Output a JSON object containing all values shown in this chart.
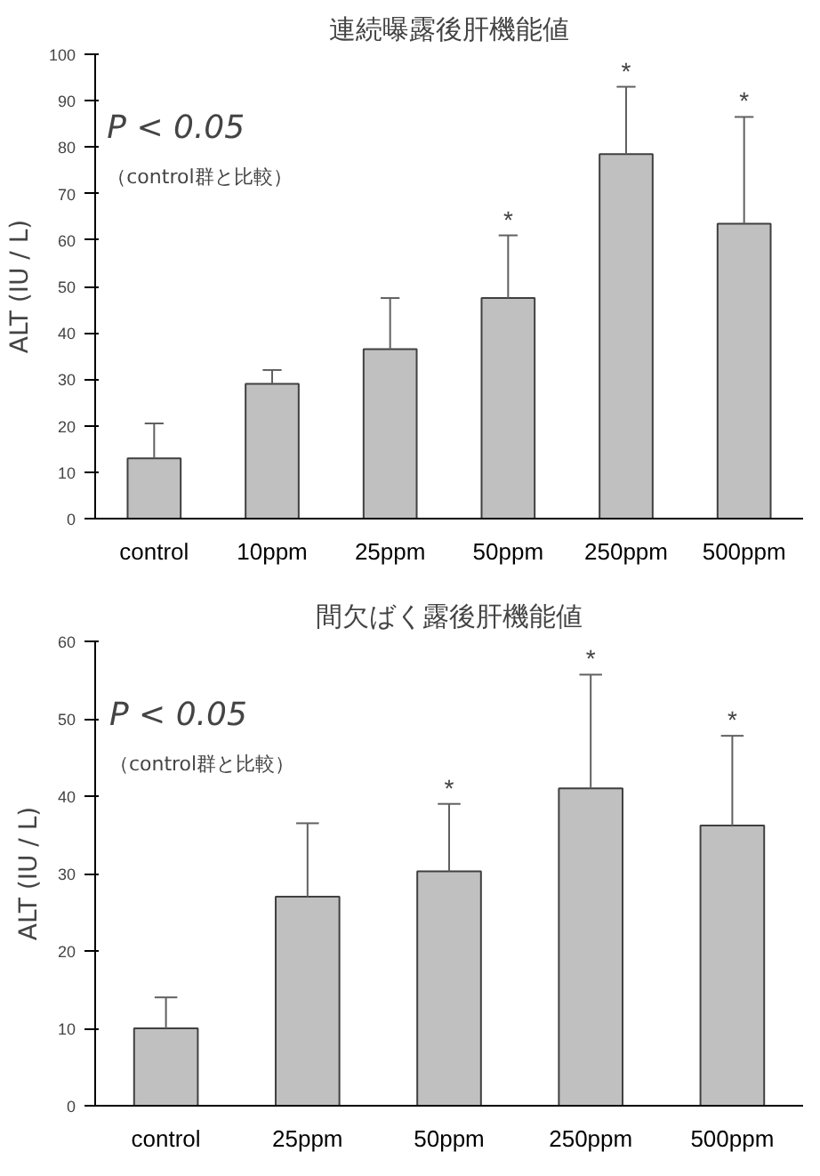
{
  "chart_data": [
    {
      "type": "bar",
      "title": "連続曝露後肝機能値",
      "ylabel": "ALT (IU / L)",
      "categories": [
        "control",
        "10ppm",
        "25ppm",
        "50ppm",
        "250ppm",
        "500ppm"
      ],
      "values": [
        13,
        29,
        36.5,
        47.5,
        78.5,
        63.5
      ],
      "color": "#c0c0c0",
      "errors": [
        [
          13,
          20.5
        ],
        [
          29,
          32
        ],
        [
          36.5,
          47.5
        ],
        [
          47.5,
          61
        ],
        [
          78.5,
          93
        ],
        [
          63.5,
          86.5
        ]
      ],
      "ylim": [
        0,
        100
      ],
      "yticks": [
        0,
        10,
        20,
        30,
        40,
        50,
        60,
        70,
        80,
        90,
        100
      ],
      "grid": false,
      "annotations": [
        "P < 0.05",
        "（control群と比較）",
        {
          "text": "*",
          "x": "50ppm",
          "y": 61
        },
        {
          "text": "*",
          "x": "250ppm",
          "y": 93
        },
        {
          "text": "*",
          "x": "500ppm",
          "y": 86.5
        }
      ]
    },
    {
      "type": "bar",
      "title": "間欠ばく露後肝機能値",
      "ylabel": "ALT (IU / L)",
      "categories": [
        "control",
        "25ppm",
        "50ppm",
        "250ppm",
        "500ppm"
      ],
      "values": [
        10,
        27,
        30.3,
        41,
        36.2
      ],
      "color": "#c0c0c0",
      "errors": [
        [
          10,
          14
        ],
        [
          27,
          36.5
        ],
        [
          30.3,
          39
        ],
        [
          41,
          55.7
        ],
        [
          36.2,
          47.8
        ]
      ],
      "ylim": [
        0,
        60
      ],
      "yticks": [
        0,
        10,
        20,
        30,
        40,
        50,
        60
      ],
      "grid": false,
      "annotations": [
        "P < 0.05",
        "（control群と比較）",
        {
          "text": "*",
          "x": "50ppm",
          "y": 39
        },
        {
          "text": "*",
          "x": "250ppm",
          "y": 55.7
        },
        {
          "text": "*",
          "x": "500ppm",
          "y": 47.8
        }
      ]
    }
  ]
}
